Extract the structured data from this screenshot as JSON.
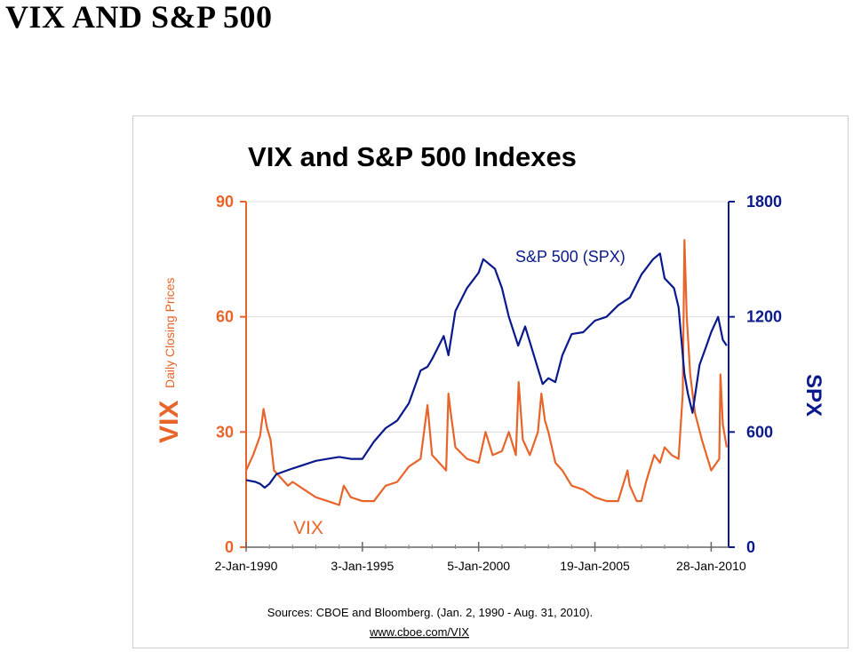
{
  "page": {
    "title": "VIX AND S&P 500"
  },
  "colors": {
    "vix": "#E8652A",
    "spx": "#0A1A8C",
    "grid": "#dcdcdc",
    "axis_text": "#000000"
  },
  "chart_data": {
    "type": "line",
    "title": "VIX and S&P 500 Indexes",
    "left_axis": {
      "label_main": "VIX",
      "label_sub": "Daily Closing Prices",
      "ticks": [
        "0",
        "30",
        "60",
        "90"
      ],
      "ylim": [
        0,
        90
      ]
    },
    "right_axis": {
      "label": "SPX",
      "ticks": [
        "0",
        "600",
        "1200",
        "1800"
      ],
      "ylim": [
        0,
        1800
      ]
    },
    "x_axis": {
      "tick_labels": [
        "2-Jan-1990",
        "3-Jan-1995",
        "5-Jan-2000",
        "19-Jan-2005",
        "28-Jan-2010"
      ],
      "xlim": [
        1990.0,
        2010.75
      ]
    },
    "grid": true,
    "series": [
      {
        "name": "VIX",
        "axis": "left",
        "x": [
          1990.0,
          1990.3,
          1990.6,
          1990.75,
          1990.9,
          1991.05,
          1991.2,
          1991.5,
          1991.8,
          1992.0,
          1992.5,
          1993.0,
          1993.5,
          1994.0,
          1994.2,
          1994.5,
          1995.0,
          1995.5,
          1996.0,
          1996.5,
          1997.0,
          1997.5,
          1997.8,
          1998.0,
          1998.3,
          1998.6,
          1998.7,
          1998.8,
          1999.0,
          1999.5,
          2000.0,
          2000.3,
          2000.6,
          2001.0,
          2001.3,
          2001.6,
          2001.72,
          2001.9,
          2002.2,
          2002.55,
          2002.7,
          2002.85,
          2003.0,
          2003.3,
          2003.6,
          2004.0,
          2004.5,
          2005.0,
          2005.5,
          2006.0,
          2006.4,
          2006.5,
          2006.8,
          2007.0,
          2007.2,
          2007.55,
          2007.8,
          2008.0,
          2008.3,
          2008.6,
          2008.78,
          2008.85,
          2008.95,
          2009.1,
          2009.3,
          2009.6,
          2010.0,
          2010.35,
          2010.4,
          2010.5,
          2010.67
        ],
        "values": [
          20,
          24,
          29,
          36,
          31,
          28,
          20,
          18,
          16,
          17,
          15,
          13,
          12,
          11,
          16,
          13,
          12,
          12,
          16,
          17,
          21,
          23,
          37,
          24,
          22,
          20,
          40,
          35,
          26,
          23,
          22,
          30,
          24,
          25,
          30,
          24,
          43,
          28,
          24,
          30,
          40,
          33,
          30,
          22,
          20,
          16,
          15,
          13,
          12,
          12,
          20,
          16,
          12,
          12,
          17,
          24,
          22,
          26,
          24,
          23,
          40,
          80,
          60,
          45,
          35,
          28,
          20,
          23,
          45,
          32,
          26
        ]
      },
      {
        "name": "S&P 500 (SPX)",
        "axis": "right",
        "x": [
          1990.0,
          1990.4,
          1990.6,
          1990.8,
          1991.0,
          1991.3,
          1992.0,
          1993.0,
          1993.5,
          1994.0,
          1994.5,
          1995.0,
          1995.5,
          1996.0,
          1996.5,
          1997.0,
          1997.5,
          1997.8,
          1998.0,
          1998.5,
          1998.7,
          1999.0,
          1999.5,
          2000.0,
          2000.2,
          2000.7,
          2001.0,
          2001.3,
          2001.7,
          2002.0,
          2002.5,
          2002.75,
          2003.0,
          2003.3,
          2003.6,
          2004.0,
          2004.5,
          2005.0,
          2005.5,
          2006.0,
          2006.5,
          2007.0,
          2007.5,
          2007.8,
          2008.0,
          2008.4,
          2008.6,
          2008.85,
          2009.0,
          2009.2,
          2009.5,
          2009.8,
          2010.0,
          2010.3,
          2010.5,
          2010.67
        ],
        "values": [
          350,
          340,
          330,
          310,
          330,
          380,
          410,
          450,
          460,
          470,
          460,
          460,
          550,
          620,
          660,
          750,
          920,
          940,
          980,
          1100,
          1000,
          1230,
          1350,
          1430,
          1500,
          1450,
          1350,
          1200,
          1050,
          1150,
          950,
          850,
          880,
          860,
          1000,
          1110,
          1120,
          1180,
          1200,
          1260,
          1300,
          1420,
          1500,
          1530,
          1400,
          1350,
          1250,
          900,
          800,
          700,
          950,
          1050,
          1120,
          1200,
          1080,
          1050
        ]
      }
    ],
    "annotations": [
      {
        "text": "S&P 500 (SPX)",
        "series": "spx"
      },
      {
        "text": "VIX",
        "series": "vix"
      }
    ],
    "sources": "Sources: CBOE and Bloomberg. (Jan. 2, 1990 - Aug. 31, 2010).",
    "url": "www.cboe.com/VIX"
  }
}
